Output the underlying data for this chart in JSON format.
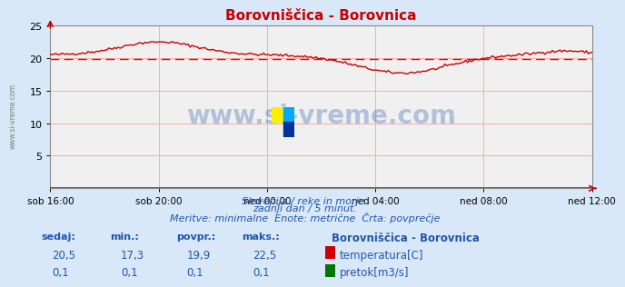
{
  "title": "Borovniščica - Borovnica",
  "bg_color": "#d8e8f8",
  "plot_bg_color": "#f0f0f0",
  "x_labels": [
    "sob 16:00",
    "sob 20:00",
    "ned 00:00",
    "ned 04:00",
    "ned 08:00",
    "ned 12:00"
  ],
  "x_ticks_count": 6,
  "ylim": [
    0,
    25
  ],
  "yticks": [
    5,
    10,
    15,
    20,
    25
  ],
  "avg_line_y": 19.9,
  "temp_color": "#cc0000",
  "flow_color": "#007700",
  "avg_line_color": "#cc0000",
  "grid_color": "#ffaaaa",
  "watermark_text": "www.si-vreme.com",
  "watermark_color": "#2255aa",
  "subtitle1": "Slovenija / reke in morje.",
  "subtitle2": "zadnji dan / 5 minut.",
  "subtitle3": "Meritve: minimalne  Enote: metrične  Črta: povprečje",
  "subtitle_color": "#2255aa",
  "legend_title": "Borovniščica - Borovnica",
  "legend_temp_label": "temperatura[C]",
  "legend_flow_label": "pretok[m3/s]",
  "stat_headers": [
    "sedaj:",
    "min.:",
    "povpr.:",
    "maks.:"
  ],
  "temp_stats": [
    "20,5",
    "17,3",
    "19,9",
    "22,5"
  ],
  "flow_stats": [
    "0,1",
    "0,1",
    "0,1",
    "0,1"
  ],
  "stat_color": "#2255aa",
  "stat_header_color": "#2255aa",
  "logo_colors": [
    "#ffee00",
    "#00aaff",
    "#003399"
  ],
  "left_watermark": "www.si-vreme.com"
}
